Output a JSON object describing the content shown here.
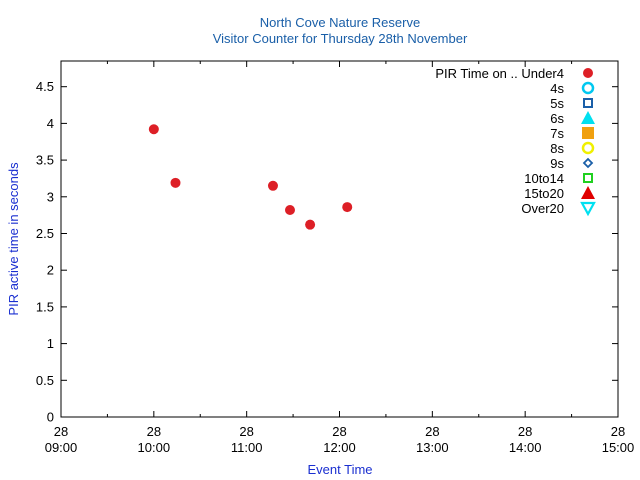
{
  "chart_data": {
    "type": "scatter",
    "title": "North Cove Nature Reserve",
    "subtitle": "Visitor Counter for Thursday 28th November",
    "xlabel": "Event Time",
    "ylabel": "PIR active time in seconds",
    "xlim": [
      "09:00",
      "15:00"
    ],
    "ylim": [
      0,
      4.85
    ],
    "x_ticks": [
      {
        "day": "28",
        "time": "09:00"
      },
      {
        "day": "28",
        "time": "10:00"
      },
      {
        "day": "28",
        "time": "11:00"
      },
      {
        "day": "28",
        "time": "12:00"
      },
      {
        "day": "28",
        "time": "13:00"
      },
      {
        "day": "28",
        "time": "14:00"
      },
      {
        "day": "28",
        "time": "15:00"
      }
    ],
    "y_ticks": [
      "0",
      "0.5",
      "1",
      "1.5",
      "2",
      "2.5",
      "3",
      "3.5",
      "4",
      "4.5"
    ],
    "grid": false,
    "legend_position": "top-right",
    "legend_title": "PIR Time on ..",
    "series": [
      {
        "name": "Under4",
        "marker": "filled-circle",
        "color": "#dd1f26",
        "points": [
          {
            "x": "10:00",
            "y": 3.92
          },
          {
            "x": "10:14",
            "y": 3.19
          },
          {
            "x": "11:17",
            "y": 3.15
          },
          {
            "x": "11:28",
            "y": 2.82
          },
          {
            "x": "11:41",
            "y": 2.62
          },
          {
            "x": "12:05",
            "y": 2.86
          }
        ]
      },
      {
        "name": "4s",
        "marker": "open-circle",
        "color": "#00c8f0",
        "points": []
      },
      {
        "name": "5s",
        "marker": "open-square",
        "color": "#1a5fa8",
        "points": []
      },
      {
        "name": "6s",
        "marker": "filled-triangle-up",
        "color": "#00e0f0",
        "points": []
      },
      {
        "name": "7s",
        "marker": "filled-square",
        "color": "#f0a010",
        "points": []
      },
      {
        "name": "8s",
        "marker": "open-circle",
        "color": "#f0f000",
        "points": []
      },
      {
        "name": "9s",
        "marker": "open-diamond",
        "color": "#1a5fa8",
        "points": []
      },
      {
        "name": "10to14",
        "marker": "open-square",
        "color": "#20d020",
        "points": []
      },
      {
        "name": "15to20",
        "marker": "filled-triangle-up",
        "color": "#e00000",
        "points": []
      },
      {
        "name": "Over20",
        "marker": "open-triangle-down",
        "color": "#00e0f0",
        "points": []
      }
    ]
  }
}
